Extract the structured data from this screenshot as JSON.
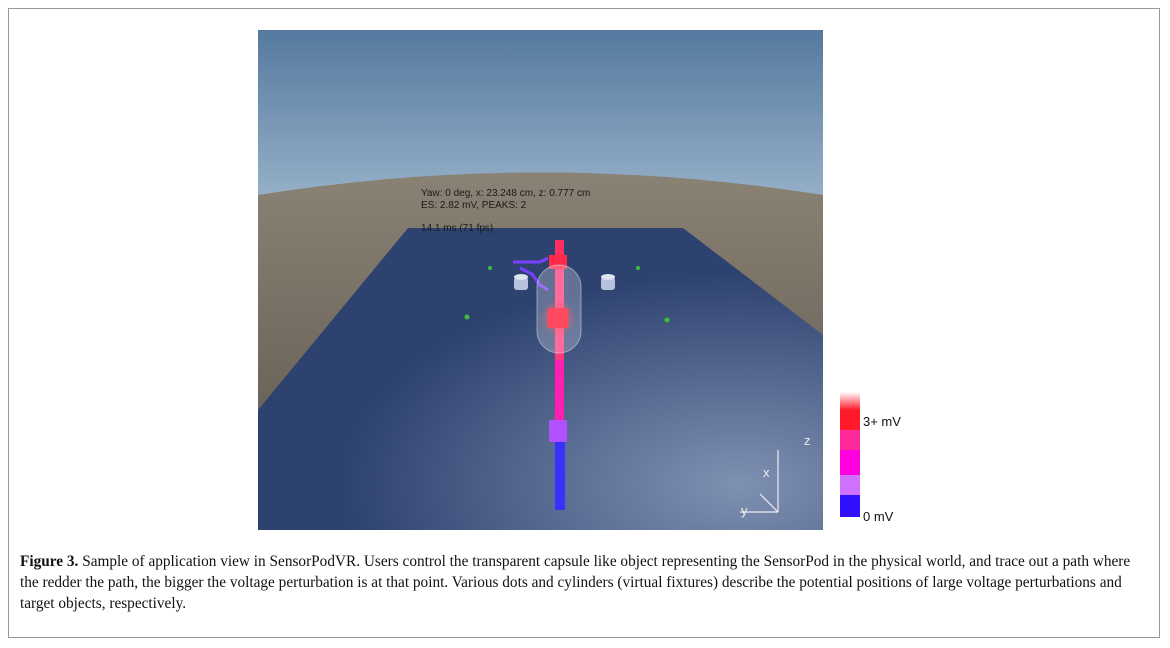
{
  "figure": {
    "overlay_lines": [
      "Yaw: 0 deg, x: 23.248 cm, z: 0.777 cm",
      "ES: 2.82 mV, PEAKS: 2",
      "14.1 ms (71 fps)"
    ],
    "colorbar_labels": [
      "3+ mV",
      "0 mV"
    ],
    "axis_labels": [
      "z",
      "x",
      "y"
    ]
  },
  "caption": {
    "label": "Figure 3.",
    "text": "Sample of application view in SensorPodVR. Users control the transparent capsule like object representing the SensorPod in the physical world, and trace out a path where the redder the path, the bigger the voltage perturbation is at that point. Various dots and cylinders (virtual fixtures) describe the potential positions of large voltage perturbations and target objects, respectively."
  }
}
